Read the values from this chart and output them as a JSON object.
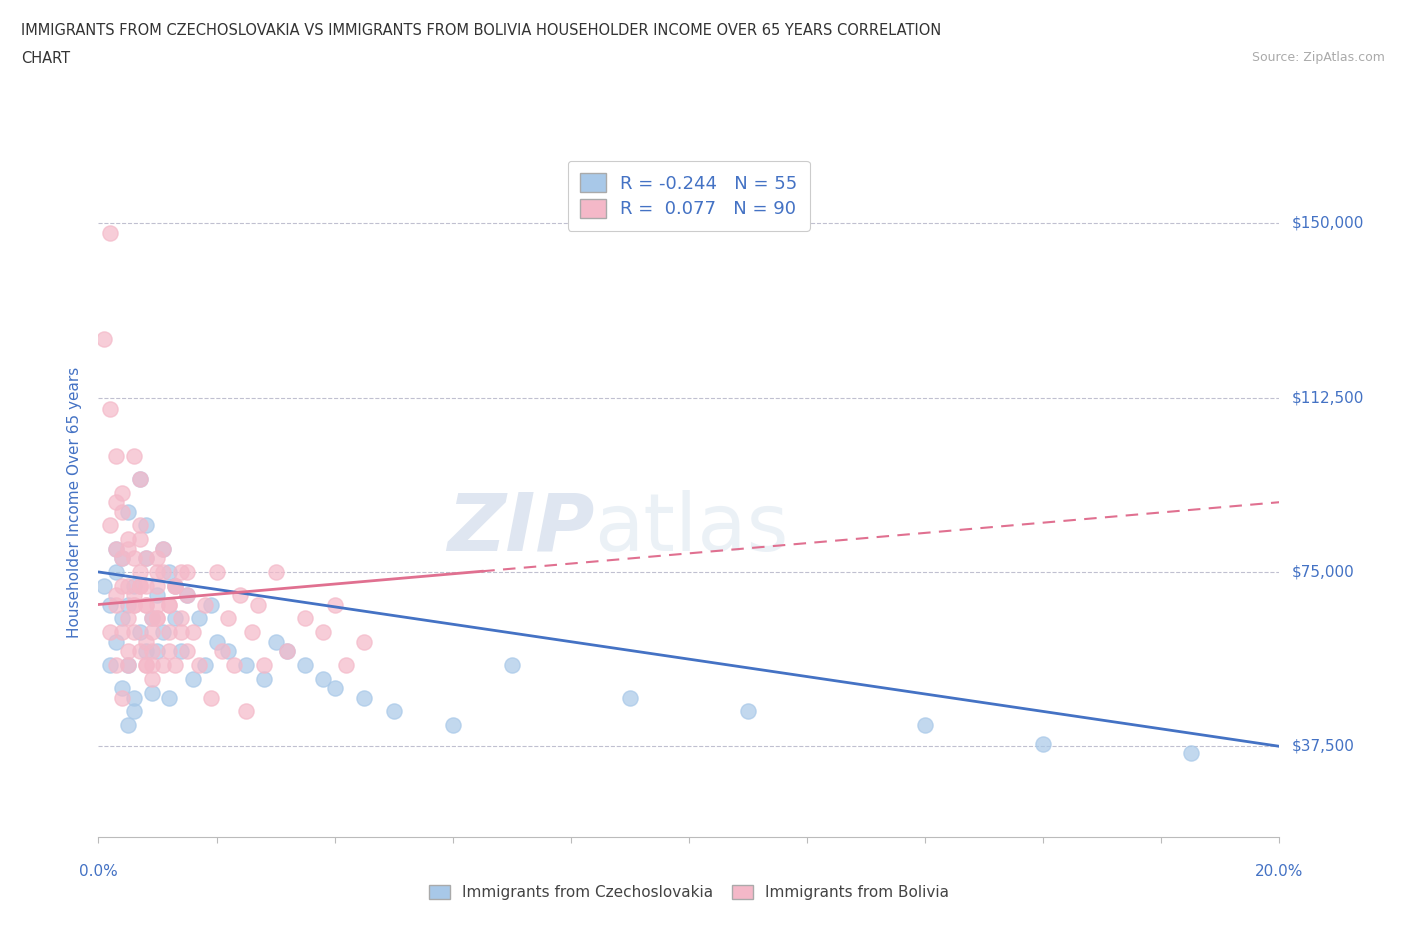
{
  "title_line1": "IMMIGRANTS FROM CZECHOSLOVAKIA VS IMMIGRANTS FROM BOLIVIA HOUSEHOLDER INCOME OVER 65 YEARS CORRELATION",
  "title_line2": "CHART",
  "source_text": "Source: ZipAtlas.com",
  "watermark_zip": "ZIP",
  "watermark_atlas": "atlas",
  "ylabel": "Householder Income Over 65 years",
  "xlim": [
    0.0,
    0.2
  ],
  "ylim": [
    18000,
    162000
  ],
  "yticks": [
    37500,
    75000,
    112500,
    150000
  ],
  "ytick_labels": [
    "$37,500",
    "$75,000",
    "$112,500",
    "$150,000"
  ],
  "xticks": [
    0.0,
    0.05,
    0.1,
    0.15,
    0.2
  ],
  "xtick_labels": [
    "0.0%",
    "",
    "",
    "",
    "20.0%"
  ],
  "legend_r_czech": "-0.244",
  "legend_n_czech": "55",
  "legend_r_bolivia": "0.077",
  "legend_n_bolivia": "90",
  "color_czech": "#a8c8e8",
  "color_bolivia": "#f4b8c8",
  "color_trendline_czech": "#4472c4",
  "color_trendline_bolivia": "#e07090",
  "background_color": "#ffffff",
  "title_color": "#333333",
  "tick_label_color": "#4472c4",
  "grid_color": "#c0c0d0",
  "czech_x": [
    0.001,
    0.002,
    0.002,
    0.003,
    0.003,
    0.003,
    0.004,
    0.004,
    0.004,
    0.005,
    0.005,
    0.005,
    0.005,
    0.006,
    0.006,
    0.006,
    0.007,
    0.007,
    0.008,
    0.008,
    0.008,
    0.009,
    0.009,
    0.01,
    0.01,
    0.011,
    0.011,
    0.012,
    0.012,
    0.013,
    0.013,
    0.014,
    0.015,
    0.016,
    0.017,
    0.018,
    0.019,
    0.02,
    0.022,
    0.025,
    0.028,
    0.03,
    0.032,
    0.035,
    0.038,
    0.04,
    0.045,
    0.05,
    0.06,
    0.07,
    0.09,
    0.11,
    0.14,
    0.16,
    0.185
  ],
  "czech_y": [
    72000,
    68000,
    55000,
    80000,
    60000,
    75000,
    50000,
    65000,
    78000,
    42000,
    88000,
    55000,
    68000,
    45000,
    72000,
    48000,
    95000,
    62000,
    58000,
    78000,
    85000,
    49000,
    65000,
    70000,
    58000,
    80000,
    62000,
    75000,
    48000,
    72000,
    65000,
    58000,
    70000,
    52000,
    65000,
    55000,
    68000,
    60000,
    58000,
    55000,
    52000,
    60000,
    58000,
    55000,
    52000,
    50000,
    48000,
    45000,
    42000,
    55000,
    48000,
    45000,
    42000,
    38000,
    36000
  ],
  "bolivia_x": [
    0.001,
    0.002,
    0.002,
    0.003,
    0.003,
    0.003,
    0.004,
    0.004,
    0.004,
    0.005,
    0.005,
    0.005,
    0.006,
    0.006,
    0.007,
    0.007,
    0.007,
    0.008,
    0.008,
    0.008,
    0.009,
    0.009,
    0.01,
    0.01,
    0.011,
    0.011,
    0.012,
    0.012,
    0.013,
    0.013,
    0.014,
    0.014,
    0.015,
    0.015,
    0.016,
    0.017,
    0.018,
    0.019,
    0.02,
    0.021,
    0.022,
    0.023,
    0.024,
    0.025,
    0.026,
    0.027,
    0.028,
    0.03,
    0.032,
    0.035,
    0.038,
    0.04,
    0.042,
    0.045,
    0.002,
    0.003,
    0.004,
    0.005,
    0.006,
    0.007,
    0.008,
    0.009,
    0.01,
    0.011,
    0.012,
    0.013,
    0.014,
    0.006,
    0.007,
    0.008,
    0.009,
    0.01,
    0.012,
    0.015,
    0.003,
    0.004,
    0.005,
    0.006,
    0.007,
    0.008,
    0.009,
    0.01,
    0.002,
    0.003,
    0.004,
    0.005,
    0.006,
    0.007,
    0.008,
    0.01
  ],
  "bolivia_y": [
    125000,
    148000,
    62000,
    80000,
    68000,
    55000,
    88000,
    72000,
    48000,
    65000,
    80000,
    55000,
    70000,
    62000,
    95000,
    58000,
    75000,
    68000,
    55000,
    72000,
    62000,
    58000,
    75000,
    65000,
    80000,
    55000,
    62000,
    68000,
    72000,
    55000,
    65000,
    75000,
    58000,
    70000,
    62000,
    55000,
    68000,
    48000,
    75000,
    58000,
    65000,
    55000,
    70000,
    45000,
    62000,
    68000,
    55000,
    75000,
    58000,
    65000,
    62000,
    68000,
    55000,
    60000,
    110000,
    90000,
    78000,
    72000,
    68000,
    82000,
    60000,
    52000,
    68000,
    75000,
    58000,
    72000,
    62000,
    100000,
    85000,
    78000,
    65000,
    72000,
    68000,
    75000,
    100000,
    92000,
    82000,
    78000,
    72000,
    68000,
    55000,
    65000,
    85000,
    70000,
    62000,
    58000,
    68000,
    72000,
    55000,
    78000
  ],
  "trendline_czech_y0": 75000,
  "trendline_czech_y1": 37500,
  "trendline_bolivia_y0": 68000,
  "trendline_bolivia_y1": 90000,
  "trendline_bolivia_solid_end": 0.065
}
